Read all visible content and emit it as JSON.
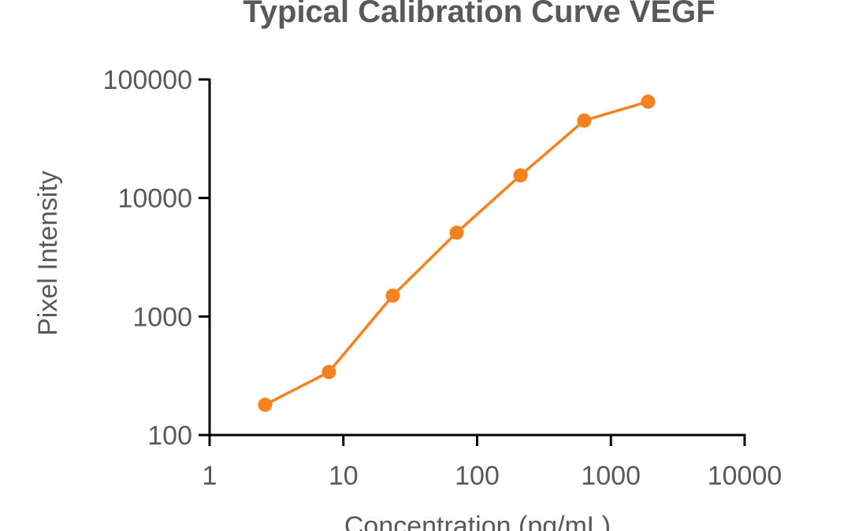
{
  "chart_data": {
    "type": "line",
    "title": "Typical Calibration Curve VEGF",
    "xlabel": "Concentration (pg/mL)",
    "ylabel": "Pixel Intensity",
    "x_scale": "log",
    "y_scale": "log",
    "xlim": [
      1,
      10000
    ],
    "ylim": [
      100,
      100000
    ],
    "x_ticks": [
      1,
      10,
      100,
      1000,
      10000
    ],
    "x_tick_labels": [
      "1",
      "10",
      "100",
      "1000",
      "10000"
    ],
    "y_ticks": [
      100,
      1000,
      10000,
      100000
    ],
    "y_tick_labels": [
      "100",
      "1000",
      "10000",
      "100000"
    ],
    "grid": false,
    "series": [
      {
        "color": "#F5821F",
        "x": [
          2.6,
          7.8,
          23.4,
          70.3,
          211,
          632,
          1896
        ],
        "y": [
          180,
          340,
          1500,
          5100,
          15500,
          45000,
          65000
        ]
      }
    ]
  }
}
